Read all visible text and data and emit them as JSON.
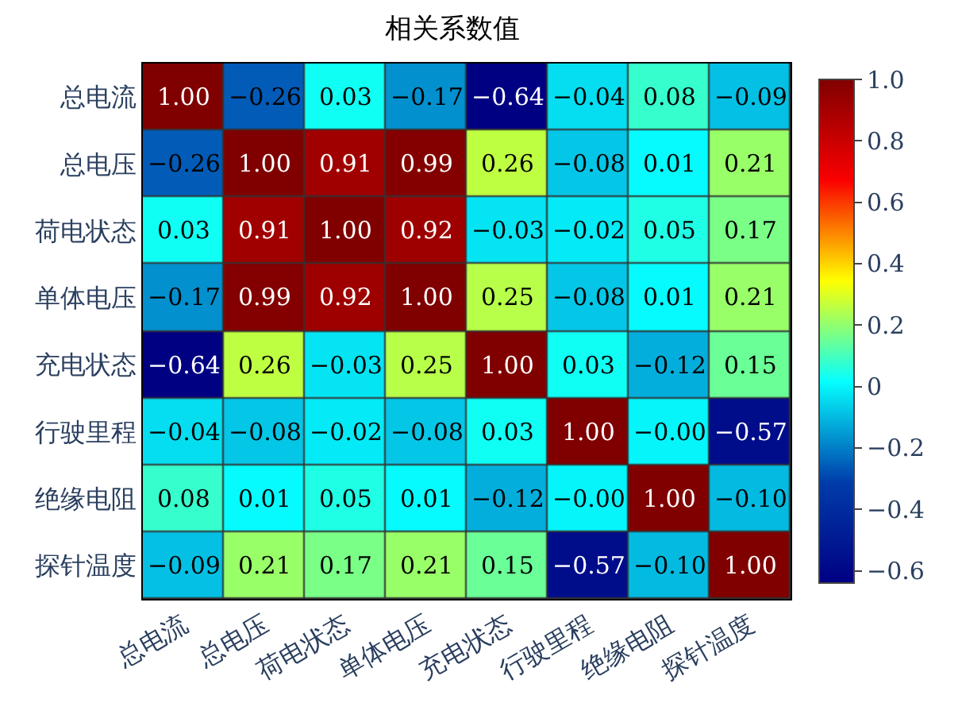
{
  "chart_data": {
    "type": "heatmap",
    "title": "相关系数值",
    "categories": [
      "总电流",
      "总电压",
      "荷电状态",
      "单体电压",
      "充电状态",
      "行驶里程",
      "绝缘电阻",
      "探针温度"
    ],
    "y_categories": [
      "总电流",
      "总电压",
      "荷电状态",
      "单体电压",
      "充电状态",
      "行驶里程",
      "绝缘电阻",
      "探针温度"
    ],
    "cells": [
      [
        1.0,
        -0.26,
        0.03,
        -0.17,
        -0.64,
        -0.04,
        0.08,
        -0.09
      ],
      [
        -0.26,
        1.0,
        0.91,
        0.99,
        0.26,
        -0.08,
        0.01,
        0.21
      ],
      [
        0.03,
        0.91,
        1.0,
        0.92,
        -0.03,
        -0.02,
        0.05,
        0.17
      ],
      [
        -0.17,
        0.99,
        0.92,
        1.0,
        0.25,
        -0.08,
        0.01,
        0.21
      ],
      [
        -0.64,
        0.26,
        -0.03,
        0.25,
        1.0,
        0.03,
        -0.12,
        0.15
      ],
      [
        -0.04,
        -0.08,
        -0.02,
        -0.08,
        0.03,
        1.0,
        -0.0,
        -0.57
      ],
      [
        0.08,
        0.01,
        0.05,
        0.01,
        -0.12,
        -0.0,
        1.0,
        -0.1
      ],
      [
        -0.09,
        0.21,
        0.17,
        0.21,
        0.15,
        -0.57,
        -0.1,
        1.0
      ]
    ],
    "cell_labels": [
      [
        "1.00",
        "−0.26",
        "0.03",
        "−0.17",
        "−0.64",
        "−0.04",
        "0.08",
        "−0.09"
      ],
      [
        "−0.26",
        "1.00",
        "0.91",
        "0.99",
        "0.26",
        "−0.08",
        "0.01",
        "0.21"
      ],
      [
        "0.03",
        "0.91",
        "1.00",
        "0.92",
        "−0.03",
        "−0.02",
        "0.05",
        "0.17"
      ],
      [
        "−0.17",
        "0.99",
        "0.92",
        "1.00",
        "0.25",
        "−0.08",
        "0.01",
        "0.21"
      ],
      [
        "−0.64",
        "0.26",
        "−0.03",
        "0.25",
        "1.00",
        "0.03",
        "−0.12",
        "0.15"
      ],
      [
        "−0.04",
        "−0.08",
        "−0.02",
        "−0.08",
        "0.03",
        "1.00",
        "−0.00",
        "−0.57"
      ],
      [
        "0.08",
        "0.01",
        "0.05",
        "0.01",
        "−0.12",
        "−0.00",
        "1.00",
        "−0.10"
      ],
      [
        "−0.09",
        "0.21",
        "0.17",
        "0.21",
        "0.15",
        "−0.57",
        "−0.10",
        "1.00"
      ]
    ],
    "clim": [
      -0.64,
      1.0
    ],
    "cticks": [
      {
        "value": -0.6,
        "label": "−0.6"
      },
      {
        "value": -0.4,
        "label": "−0.4"
      },
      {
        "value": -0.2,
        "label": "−0.2"
      },
      0,
      0.2,
      0.4,
      0.6,
      0.8,
      {
        "value": 1.0,
        "label": "1.0"
      }
    ]
  }
}
